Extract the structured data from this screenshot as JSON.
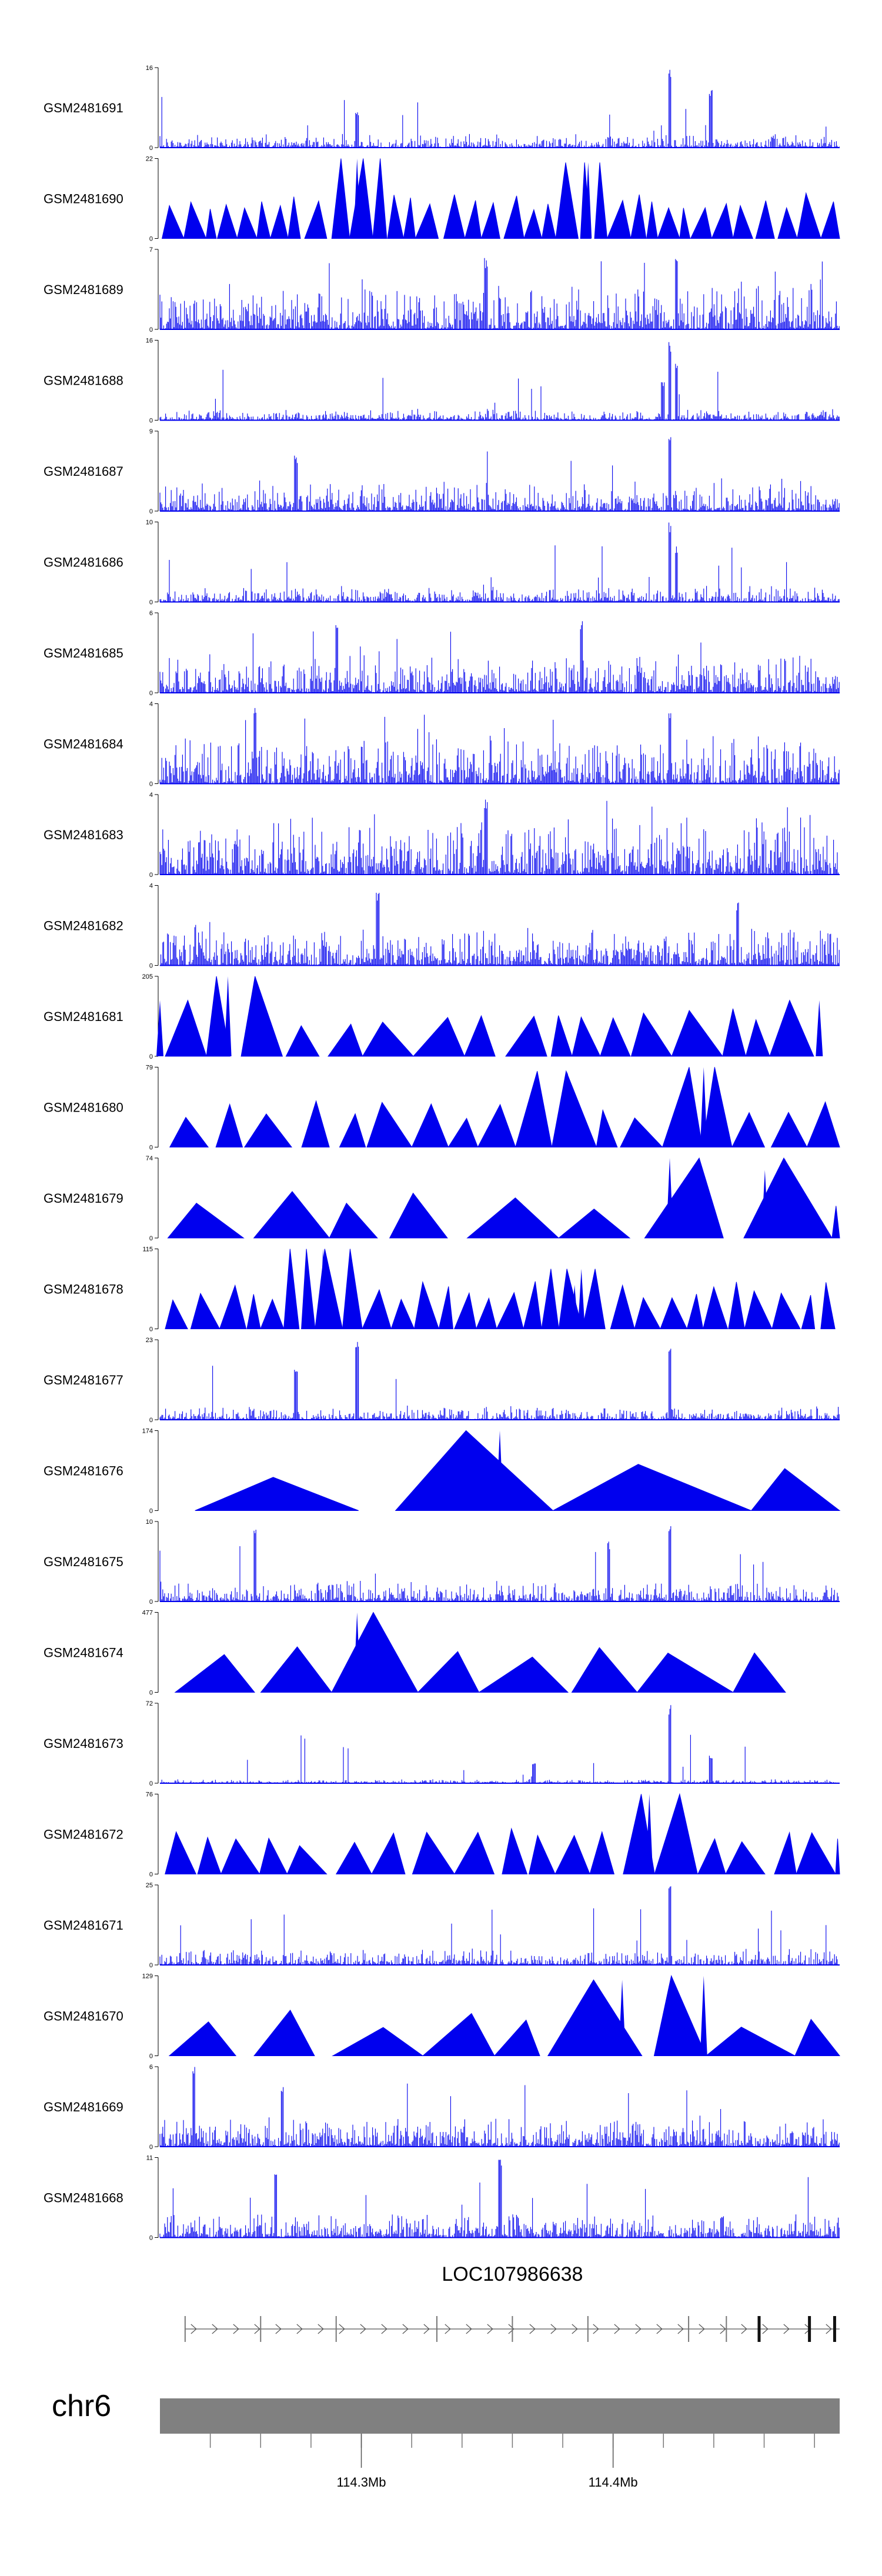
{
  "chart_data": {
    "type": "area",
    "title": "",
    "genome_browser": true,
    "region": {
      "chrom": "chr6",
      "start_mb": 114.22,
      "end_mb": 114.49
    },
    "color": "#0000ee",
    "tracks": [
      {
        "name": "GSM2481691",
        "ymax": "16",
        "ymin": "0",
        "style": "spiky",
        "seed": 11,
        "base": 0.1,
        "peaks": [
          [
            0.75,
            1.0
          ],
          [
            0.81,
            0.75
          ],
          [
            0.29,
            0.45
          ]
        ]
      },
      {
        "name": "GSM2481690",
        "ymax": "22",
        "ymin": "0",
        "style": "triangles",
        "seed": 12,
        "count": 36,
        "peaks": [
          [
            0.29,
            1.0
          ],
          [
            0.63,
            0.95
          ]
        ]
      },
      {
        "name": "GSM2481689",
        "ymax": "7",
        "ymin": "0",
        "style": "spiky",
        "seed": 13,
        "base": 0.35,
        "peaks": [
          [
            0.48,
            0.9
          ],
          [
            0.76,
            0.9
          ]
        ]
      },
      {
        "name": "GSM2481688",
        "ymax": "16",
        "ymin": "0",
        "style": "spiky",
        "seed": 14,
        "base": 0.08,
        "peaks": [
          [
            0.75,
            1.0
          ],
          [
            0.76,
            0.75
          ],
          [
            0.74,
            0.5
          ]
        ]
      },
      {
        "name": "GSM2481687",
        "ymax": "9",
        "ymin": "0",
        "style": "spiky",
        "seed": 15,
        "base": 0.22,
        "peaks": [
          [
            0.75,
            1.0
          ],
          [
            0.2,
            0.7
          ]
        ]
      },
      {
        "name": "GSM2481686",
        "ymax": "10",
        "ymin": "0",
        "style": "spiky",
        "seed": 16,
        "base": 0.12,
        "peaks": [
          [
            0.75,
            1.0
          ],
          [
            0.76,
            0.7
          ]
        ]
      },
      {
        "name": "GSM2481685",
        "ymax": "6",
        "ymin": "0",
        "style": "spiky",
        "seed": 17,
        "base": 0.3,
        "peaks": [
          [
            0.26,
            0.95
          ],
          [
            0.62,
            0.9
          ]
        ]
      },
      {
        "name": "GSM2481684",
        "ymax": "4",
        "ymin": "0",
        "style": "spiky",
        "seed": 18,
        "base": 0.35,
        "peaks": [
          [
            0.14,
            0.95
          ],
          [
            0.75,
            0.95
          ]
        ]
      },
      {
        "name": "GSM2481683",
        "ymax": "4",
        "ymin": "0",
        "style": "spiky",
        "seed": 19,
        "base": 0.4,
        "peaks": [
          [
            0.48,
            0.95
          ]
        ]
      },
      {
        "name": "GSM2481682",
        "ymax": "4",
        "ymin": "0",
        "style": "spiky",
        "seed": 20,
        "base": 0.28,
        "peaks": [
          [
            0.32,
            0.95
          ],
          [
            0.85,
            0.8
          ]
        ]
      },
      {
        "name": "GSM2481681",
        "ymax": "205",
        "ymin": "0",
        "style": "triangles",
        "seed": 21,
        "count": 17,
        "peaks": [
          [
            0.1,
            1.0
          ],
          [
            0.0,
            0.7
          ],
          [
            0.97,
            0.7
          ]
        ]
      },
      {
        "name": "GSM2481680",
        "ymax": "79",
        "ymin": "0",
        "style": "triangles",
        "seed": 22,
        "count": 18,
        "peaks": [
          [
            0.8,
            1.0
          ],
          [
            0.6,
            0.95
          ]
        ]
      },
      {
        "name": "GSM2481679",
        "ymax": "74",
        "ymin": "0",
        "style": "triangles",
        "seed": 23,
        "count": 9,
        "peaks": [
          [
            0.75,
            1.0
          ],
          [
            0.92,
            1.0
          ],
          [
            0.89,
            0.85
          ]
        ]
      },
      {
        "name": "GSM2481678",
        "ymax": "115",
        "ymin": "0",
        "style": "triangles",
        "seed": 24,
        "count": 30,
        "peaks": [
          [
            0.24,
            1.0
          ],
          [
            0.62,
            0.75
          ],
          [
            0.61,
            0.55
          ]
        ]
      },
      {
        "name": "GSM2481677",
        "ymax": "23",
        "ymin": "0",
        "style": "spiky",
        "seed": 25,
        "base": 0.1,
        "peaks": [
          [
            0.75,
            1.0
          ],
          [
            0.29,
            1.0
          ],
          [
            0.2,
            0.7
          ]
        ]
      },
      {
        "name": "GSM2481676",
        "ymax": "174",
        "ymin": "0",
        "style": "triangles",
        "seed": 26,
        "count": 4,
        "peaks": [
          [
            0.5,
            1.0
          ]
        ]
      },
      {
        "name": "GSM2481675",
        "ymax": "10",
        "ymin": "0",
        "style": "spiky",
        "seed": 27,
        "base": 0.15,
        "peaks": [
          [
            0.14,
            0.95
          ],
          [
            0.75,
            0.95
          ],
          [
            0.66,
            0.75
          ]
        ]
      },
      {
        "name": "GSM2481674",
        "ymax": "477",
        "ymin": "0",
        "style": "triangles",
        "seed": 28,
        "count": 8,
        "peaks": [
          [
            0.29,
            1.0
          ]
        ]
      },
      {
        "name": "GSM2481673",
        "ymax": "72",
        "ymin": "0",
        "style": "spiky",
        "seed": 29,
        "base": 0.03,
        "peaks": [
          [
            0.75,
            1.0
          ],
          [
            0.81,
            0.35
          ],
          [
            0.55,
            0.25
          ]
        ]
      },
      {
        "name": "GSM2481672",
        "ymax": "76",
        "ymin": "0",
        "style": "triangles",
        "seed": 30,
        "count": 20,
        "peaks": [
          [
            0.72,
            1.0
          ]
        ]
      },
      {
        "name": "GSM2481671",
        "ymax": "25",
        "ymin": "0",
        "style": "spiky",
        "seed": 31,
        "base": 0.12,
        "peaks": [
          [
            0.75,
            1.0
          ]
        ]
      },
      {
        "name": "GSM2481670",
        "ymax": "129",
        "ymin": "0",
        "style": "triangles",
        "seed": 32,
        "count": 9,
        "peaks": [
          [
            0.8,
            1.0
          ],
          [
            0.68,
            0.95
          ]
        ]
      },
      {
        "name": "GSM2481669",
        "ymax": "6",
        "ymin": "0",
        "style": "spiky",
        "seed": 33,
        "base": 0.22,
        "peaks": [
          [
            0.05,
            1.0
          ],
          [
            0.18,
            0.8
          ]
        ]
      },
      {
        "name": "GSM2481668",
        "ymax": "11",
        "ymin": "0",
        "style": "spiky",
        "seed": 34,
        "base": 0.18,
        "peaks": [
          [
            0.5,
            1.0
          ],
          [
            0.17,
            0.8
          ]
        ]
      }
    ],
    "gene": {
      "name": "LOC107986638",
      "start_mb": 114.23,
      "end_mb": 114.49,
      "strand": "+"
    },
    "axis": {
      "chrom": "chr6",
      "labels": [
        {
          "mb": 114.3,
          "text": "114.3Mb"
        },
        {
          "mb": 114.4,
          "text": "114.4Mb"
        }
      ],
      "minor_ticks_mb": [
        114.24,
        114.26,
        114.28,
        114.3,
        114.32,
        114.34,
        114.36,
        114.38,
        114.4,
        114.42,
        114.44,
        114.46,
        114.48
      ]
    }
  }
}
